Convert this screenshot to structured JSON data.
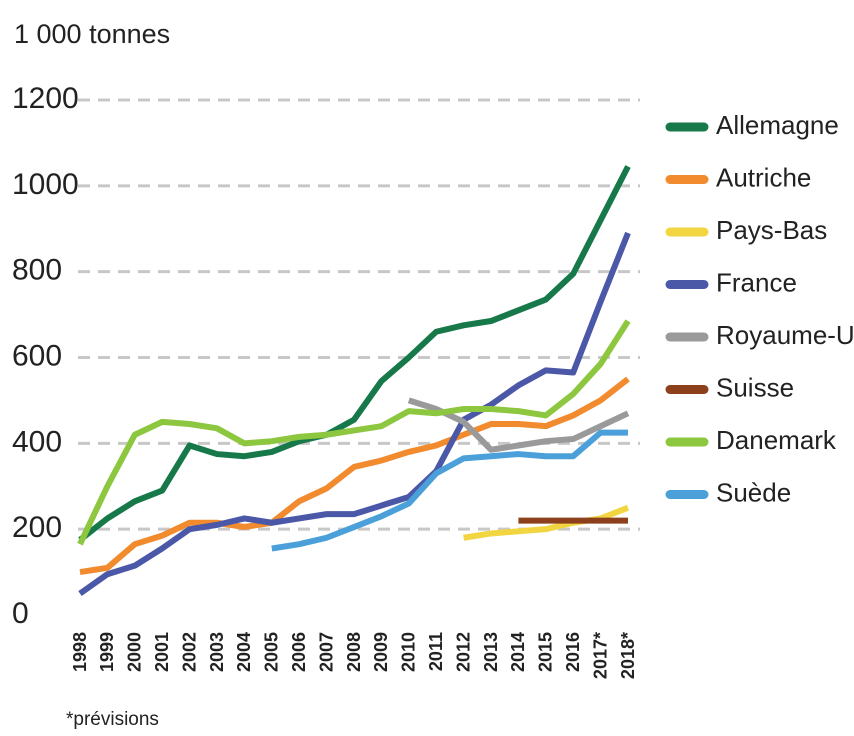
{
  "chart_data": {
    "type": "line",
    "y_label": "1 000 tonnes",
    "footnote": "*prévisions",
    "categories": [
      "1998",
      "1999",
      "2000",
      "2001",
      "2002",
      "2003",
      "2004",
      "2005",
      "2006",
      "2007",
      "2008",
      "2009",
      "2010",
      "2011",
      "2012",
      "2013",
      "2014",
      "2015",
      "2016",
      "2017*",
      "2018*"
    ],
    "ylim": [
      0,
      1200
    ],
    "yticks": [
      0,
      200,
      400,
      600,
      800,
      1000,
      1200
    ],
    "grid": true,
    "legend": "right",
    "series": [
      {
        "name": "Allemagne",
        "color": "#17794a",
        "values": [
          175,
          225,
          265,
          290,
          395,
          375,
          370,
          380,
          405,
          420,
          455,
          545,
          600,
          660,
          675,
          685,
          710,
          735,
          795,
          920,
          1045
        ]
      },
      {
        "name": "Autriche",
        "color": "#f28a2e",
        "values": [
          100,
          110,
          165,
          185,
          215,
          215,
          205,
          215,
          265,
          295,
          345,
          360,
          380,
          395,
          420,
          445,
          445,
          440,
          465,
          500,
          550
        ]
      },
      {
        "name": "Pays-Bas",
        "color": "#f2d641",
        "values": [
          null,
          null,
          null,
          null,
          null,
          null,
          null,
          null,
          null,
          null,
          null,
          null,
          null,
          null,
          180,
          190,
          195,
          200,
          215,
          225,
          250
        ]
      },
      {
        "name": "France",
        "color": "#4b58a8",
        "values": [
          50,
          95,
          115,
          155,
          200,
          210,
          225,
          215,
          225,
          235,
          235,
          255,
          275,
          335,
          455,
          490,
          535,
          570,
          565,
          730,
          890
        ]
      },
      {
        "name": "Royaume-Uni",
        "color": "#9a9a9a",
        "values": [
          null,
          null,
          null,
          null,
          null,
          null,
          null,
          null,
          null,
          null,
          null,
          null,
          500,
          480,
          450,
          385,
          395,
          405,
          410,
          440,
          470
        ]
      },
      {
        "name": "Suisse",
        "color": "#8c401c",
        "values": [
          null,
          null,
          null,
          null,
          null,
          null,
          null,
          null,
          null,
          null,
          null,
          null,
          null,
          null,
          null,
          null,
          220,
          220,
          220,
          220,
          220
        ]
      },
      {
        "name": "Danemark",
        "color": "#8dc63f",
        "values": [
          165,
          300,
          420,
          450,
          445,
          435,
          400,
          405,
          415,
          420,
          430,
          440,
          475,
          470,
          480,
          480,
          475,
          465,
          515,
          585,
          685
        ]
      },
      {
        "name": "Suède",
        "color": "#4ba0d9",
        "values": [
          null,
          null,
          null,
          null,
          null,
          null,
          null,
          155,
          165,
          180,
          205,
          230,
          260,
          330,
          365,
          370,
          375,
          370,
          370,
          425,
          425
        ]
      }
    ]
  }
}
